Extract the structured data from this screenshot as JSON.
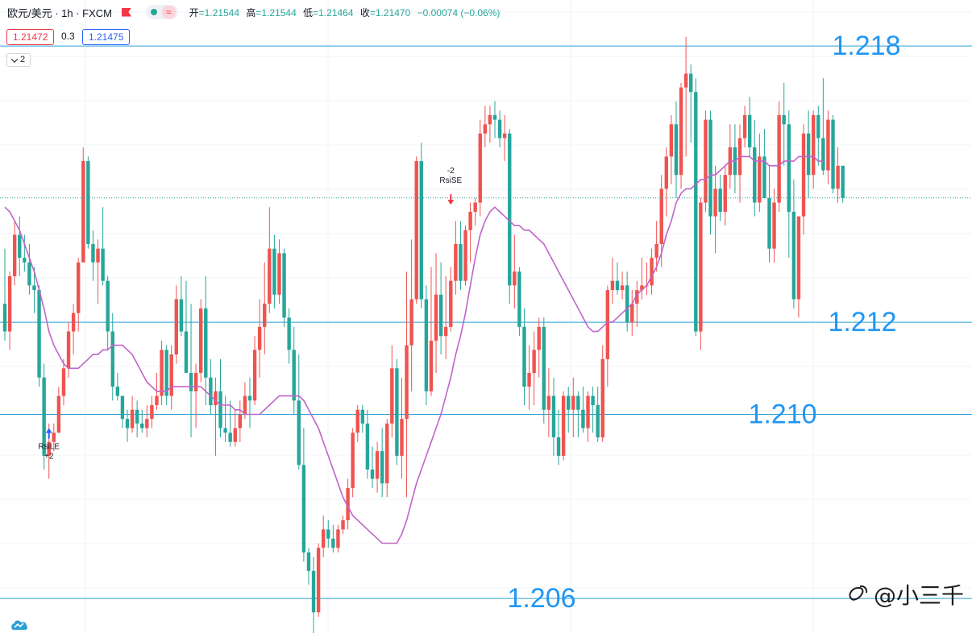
{
  "header": {
    "title": "欧元/美元 · 1h · FXCM",
    "ohlc": {
      "open_label": "开",
      "open": "=1.21544",
      "high_label": "高",
      "high": "=1.21544",
      "low_label": "低",
      "low": "=1.21464",
      "close_label": "收",
      "close": "=1.21470",
      "change": "−0.00074 (−0.06%)"
    },
    "wave_glyph": "≈"
  },
  "quotes": {
    "sell": "1.21472",
    "spread": "0.3",
    "buy": "1.21475"
  },
  "indicator_toggle": "2",
  "watermark": "@小三千",
  "colors": {
    "up": "#ef5350",
    "down": "#26a69a",
    "ma": "#c064c8",
    "level_line": "#2a9fd6",
    "level_label": "#2196f3",
    "grid": "#f0f3fa"
  },
  "chart_data": {
    "type": "candlestick",
    "symbol": "欧元/美元",
    "timeframe": "1h",
    "ylim": [
      1.2055,
      1.219
    ],
    "current_price": 1.2147,
    "levels": [
      {
        "label": "1.218",
        "value": 1.218
      },
      {
        "label": "1.212",
        "value": 1.212
      },
      {
        "label": "1.210",
        "value": 1.21
      },
      {
        "label": "1.206",
        "value": 1.206
      }
    ],
    "annotations": [
      {
        "label": "RsiLE",
        "sub": "+2",
        "index": 9,
        "price": 1.2097,
        "direction": "up"
      },
      {
        "label": "RsiSE",
        "sub": "-2",
        "index": 91,
        "price": 1.2148,
        "direction": "down"
      }
    ],
    "ohlc": [
      [
        1.2124,
        1.2136,
        1.2116,
        1.2118
      ],
      [
        1.2118,
        1.2131,
        1.2114,
        1.213
      ],
      [
        1.213,
        1.2142,
        1.2128,
        1.2139
      ],
      [
        1.2139,
        1.2143,
        1.213,
        1.2134
      ],
      [
        1.2134,
        1.2139,
        1.2131,
        1.2133
      ],
      [
        1.2133,
        1.2137,
        1.2126,
        1.2128
      ],
      [
        1.2128,
        1.2132,
        1.2122,
        1.2127
      ],
      [
        1.2127,
        1.2128,
        1.2106,
        1.2108
      ],
      [
        1.2108,
        1.2111,
        1.2088,
        1.2091
      ],
      [
        1.2091,
        1.2098,
        1.2086,
        1.2094
      ],
      [
        1.2094,
        1.2098,
        1.2092,
        1.2096
      ],
      [
        1.2096,
        1.2106,
        1.2096,
        1.2104
      ],
      [
        1.2104,
        1.2112,
        1.2102,
        1.211
      ],
      [
        1.211,
        1.212,
        1.2108,
        1.2118
      ],
      [
        1.2118,
        1.2124,
        1.2113,
        1.2122
      ],
      [
        1.2122,
        1.2134,
        1.2118,
        1.2133
      ],
      [
        1.2133,
        1.2158,
        1.2133,
        1.2155
      ],
      [
        1.2155,
        1.2156,
        1.2136,
        1.2137
      ],
      [
        1.2137,
        1.214,
        1.2129,
        1.2133
      ],
      [
        1.2133,
        1.2138,
        1.2124,
        1.2136
      ],
      [
        1.2136,
        1.2145,
        1.2128,
        1.2129
      ],
      [
        1.2129,
        1.213,
        1.2114,
        1.2118
      ],
      [
        1.2118,
        1.2122,
        1.2103,
        1.2106
      ],
      [
        1.2106,
        1.2109,
        1.2103,
        1.2104
      ],
      [
        1.2104,
        1.2104,
        1.2097,
        1.2099
      ],
      [
        1.2099,
        1.2101,
        1.2094,
        1.2097
      ],
      [
        1.2097,
        1.2104,
        1.2096,
        1.2101
      ],
      [
        1.2101,
        1.2103,
        1.2095,
        1.2098
      ],
      [
        1.2098,
        1.2101,
        1.2096,
        1.2097
      ],
      [
        1.2097,
        1.2102,
        1.2095,
        1.2099
      ],
      [
        1.2099,
        1.2104,
        1.2097,
        1.2102
      ],
      [
        1.2102,
        1.2109,
        1.2101,
        1.2104
      ],
      [
        1.2104,
        1.2116,
        1.2102,
        1.2114
      ],
      [
        1.2114,
        1.2115,
        1.2102,
        1.2104
      ],
      [
        1.2104,
        1.2115,
        1.2101,
        1.2113
      ],
      [
        1.2113,
        1.2128,
        1.2111,
        1.2125
      ],
      [
        1.2125,
        1.213,
        1.2117,
        1.2118
      ],
      [
        1.2118,
        1.2129,
        1.2109,
        1.2109
      ],
      [
        1.2109,
        1.2124,
        1.2095,
        1.2105
      ],
      [
        1.2105,
        1.2111,
        1.2097,
        1.2109
      ],
      [
        1.2109,
        1.2125,
        1.2107,
        1.2123
      ],
      [
        1.2123,
        1.213,
        1.2102,
        1.2108
      ],
      [
        1.2108,
        1.2112,
        1.21,
        1.2102
      ],
      [
        1.2102,
        1.2108,
        1.2091,
        1.2105
      ],
      [
        1.2105,
        1.2112,
        1.2095,
        1.2097
      ],
      [
        1.2097,
        1.2104,
        1.2094,
        1.2096
      ],
      [
        1.2096,
        1.2103,
        1.2093,
        1.2094
      ],
      [
        1.2094,
        1.2101,
        1.2093,
        1.2097
      ],
      [
        1.2097,
        1.2103,
        1.2094,
        1.21
      ],
      [
        1.21,
        1.2107,
        1.2099,
        1.2104
      ],
      [
        1.2104,
        1.2108,
        1.2097,
        1.2103
      ],
      [
        1.2103,
        1.2117,
        1.2102,
        1.2114
      ],
      [
        1.2114,
        1.2125,
        1.2108,
        1.2119
      ],
      [
        1.2119,
        1.2133,
        1.2113,
        1.2124
      ],
      [
        1.2124,
        1.2145,
        1.2122,
        1.2136
      ],
      [
        1.2136,
        1.2139,
        1.2123,
        1.2126
      ],
      [
        1.2126,
        1.2138,
        1.2124,
        1.2135
      ],
      [
        1.2135,
        1.2136,
        1.2119,
        1.2121
      ],
      [
        1.2121,
        1.2123,
        1.2111,
        1.2114
      ],
      [
        1.2114,
        1.2119,
        1.21,
        1.2103
      ],
      [
        1.2103,
        1.2113,
        1.2088,
        1.2089
      ],
      [
        1.2089,
        1.2097,
        1.2068,
        1.207
      ],
      [
        1.207,
        1.2071,
        1.2063,
        1.2066
      ],
      [
        1.2066,
        1.2069,
        1.2051,
        1.2057
      ],
      [
        1.2057,
        1.2072,
        1.2056,
        1.2071
      ],
      [
        1.2071,
        1.2078,
        1.2069,
        1.2075
      ],
      [
        1.2075,
        1.2077,
        1.2071,
        1.2073
      ],
      [
        1.2073,
        1.2076,
        1.207,
        1.2071
      ],
      [
        1.2071,
        1.2076,
        1.207,
        1.2075
      ],
      [
        1.2075,
        1.2078,
        1.2074,
        1.2077
      ],
      [
        1.2077,
        1.2086,
        1.2075,
        1.2084
      ],
      [
        1.2084,
        1.2097,
        1.2082,
        1.2096
      ],
      [
        1.2096,
        1.2102,
        1.2094,
        1.2101
      ],
      [
        1.2101,
        1.2102,
        1.2096,
        1.2098
      ],
      [
        1.2098,
        1.2101,
        1.2086,
        1.2088
      ],
      [
        1.2088,
        1.2093,
        1.2084,
        1.2086
      ],
      [
        1.2086,
        1.2094,
        1.2083,
        1.2092
      ],
      [
        1.2092,
        1.2097,
        1.2082,
        1.2085
      ],
      [
        1.2085,
        1.2099,
        1.2082,
        1.2098
      ],
      [
        1.2098,
        1.2115,
        1.2095,
        1.211
      ],
      [
        1.211,
        1.2112,
        1.2089,
        1.2091
      ],
      [
        1.2091,
        1.2108,
        1.2086,
        1.2099
      ],
      [
        1.2099,
        1.2131,
        1.2082,
        1.2115
      ],
      [
        1.2115,
        1.2138,
        1.2105,
        1.2125
      ],
      [
        1.2125,
        1.2156,
        1.2124,
        1.2155
      ],
      [
        1.2155,
        1.2159,
        1.2123,
        1.2125
      ],
      [
        1.2125,
        1.2128,
        1.2102,
        1.2105
      ],
      [
        1.2105,
        1.2132,
        1.2104,
        1.2116
      ],
      [
        1.2116,
        1.2135,
        1.2109,
        1.2126
      ],
      [
        1.2126,
        1.2133,
        1.2113,
        1.2117
      ],
      [
        1.2117,
        1.213,
        1.2112,
        1.2119
      ],
      [
        1.2119,
        1.2132,
        1.2118,
        1.2129
      ],
      [
        1.2129,
        1.2142,
        1.2126,
        1.2137
      ],
      [
        1.2137,
        1.2142,
        1.2127,
        1.2129
      ],
      [
        1.2129,
        1.2141,
        1.2128,
        1.214
      ],
      [
        1.214,
        1.2146,
        1.2133,
        1.2144
      ],
      [
        1.2144,
        1.2147,
        1.2141,
        1.2146
      ],
      [
        1.2146,
        1.2164,
        1.2143,
        1.2161
      ],
      [
        1.2161,
        1.2167,
        1.2158,
        1.2163
      ],
      [
        1.2163,
        1.2167,
        1.2159,
        1.2165
      ],
      [
        1.2165,
        1.2168,
        1.216,
        1.2164
      ],
      [
        1.2164,
        1.2166,
        1.2158,
        1.216
      ],
      [
        1.216,
        1.2165,
        1.2155,
        1.2161
      ],
      [
        1.2161,
        1.2162,
        1.2124,
        1.2128
      ],
      [
        1.2128,
        1.2139,
        1.2123,
        1.2131
      ],
      [
        1.2131,
        1.2132,
        1.2117,
        1.2119
      ],
      [
        1.2119,
        1.2123,
        1.2102,
        1.2106
      ],
      [
        1.2106,
        1.2115,
        1.2101,
        1.2109
      ],
      [
        1.2109,
        1.2118,
        1.2102,
        1.2114
      ],
      [
        1.2114,
        1.2121,
        1.2108,
        1.2119
      ],
      [
        1.2119,
        1.2121,
        1.2098,
        1.2101
      ],
      [
        1.2101,
        1.211,
        1.2095,
        1.2104
      ],
      [
        1.2104,
        1.2108,
        1.2091,
        1.2095
      ],
      [
        1.2095,
        1.2101,
        1.2089,
        1.2091
      ],
      [
        1.2091,
        1.2105,
        1.209,
        1.2104
      ],
      [
        1.2104,
        1.2106,
        1.2096,
        1.2101
      ],
      [
        1.2101,
        1.2108,
        1.2095,
        1.2104
      ],
      [
        1.2104,
        1.2105,
        1.2095,
        1.2101
      ],
      [
        1.2101,
        1.2106,
        1.2096,
        1.2097
      ],
      [
        1.2097,
        1.2105,
        1.2094,
        1.2104
      ],
      [
        1.2104,
        1.2106,
        1.2096,
        1.2102
      ],
      [
        1.2102,
        1.2106,
        1.2094,
        1.2095
      ],
      [
        1.2095,
        1.2115,
        1.2094,
        1.2112
      ],
      [
        1.2112,
        1.2128,
        1.2106,
        1.2127
      ],
      [
        1.2127,
        1.2134,
        1.2124,
        1.2129
      ],
      [
        1.2129,
        1.2133,
        1.2126,
        1.2127
      ],
      [
        1.2127,
        1.2131,
        1.2125,
        1.2128
      ],
      [
        1.2128,
        1.2131,
        1.2118,
        1.212
      ],
      [
        1.212,
        1.2127,
        1.2117,
        1.2124
      ],
      [
        1.2124,
        1.2129,
        1.2119,
        1.2127
      ],
      [
        1.2127,
        1.2134,
        1.2125,
        1.2128
      ],
      [
        1.2128,
        1.2133,
        1.2126,
        1.2128
      ],
      [
        1.2128,
        1.2136,
        1.2126,
        1.2134
      ],
      [
        1.2134,
        1.2142,
        1.2131,
        1.2137
      ],
      [
        1.2137,
        1.2152,
        1.2132,
        1.2149
      ],
      [
        1.2149,
        1.2158,
        1.2143,
        1.2156
      ],
      [
        1.2156,
        1.2165,
        1.215,
        1.2163
      ],
      [
        1.2163,
        1.2168,
        1.2147,
        1.2152
      ],
      [
        1.2152,
        1.2172,
        1.2149,
        1.2171
      ],
      [
        1.2171,
        1.2182,
        1.2156,
        1.2174
      ],
      [
        1.2174,
        1.2176,
        1.2159,
        1.217
      ],
      [
        1.217,
        1.2173,
        1.2117,
        1.2118
      ],
      [
        1.2118,
        1.2147,
        1.2114,
        1.2146
      ],
      [
        1.2146,
        1.2166,
        1.2144,
        1.2164
      ],
      [
        1.2164,
        1.2166,
        1.2139,
        1.2143
      ],
      [
        1.2143,
        1.2154,
        1.2135,
        1.2149
      ],
      [
        1.2149,
        1.2152,
        1.2142,
        1.2144
      ],
      [
        1.2144,
        1.2154,
        1.2141,
        1.2152
      ],
      [
        1.2152,
        1.2163,
        1.2149,
        1.2158
      ],
      [
        1.2158,
        1.2163,
        1.2148,
        1.2152
      ],
      [
        1.2152,
        1.2163,
        1.2146,
        1.216
      ],
      [
        1.216,
        1.2167,
        1.2158,
        1.2165
      ],
      [
        1.2165,
        1.2169,
        1.2156,
        1.2158
      ],
      [
        1.2158,
        1.2164,
        1.2143,
        1.2146
      ],
      [
        1.2146,
        1.2161,
        1.2144,
        1.2156
      ],
      [
        1.2156,
        1.2162,
        1.2147,
        1.2147
      ],
      [
        1.2147,
        1.2154,
        1.2133,
        1.2136
      ],
      [
        1.2136,
        1.2149,
        1.2133,
        1.2146
      ],
      [
        1.2146,
        1.2168,
        1.2144,
        1.2165
      ],
      [
        1.2165,
        1.2172,
        1.2154,
        1.2163
      ],
      [
        1.2163,
        1.2166,
        1.2134,
        1.2144
      ],
      [
        1.2144,
        1.2151,
        1.2123,
        1.2125
      ],
      [
        1.2125,
        1.2143,
        1.2121,
        1.2143
      ],
      [
        1.2143,
        1.2163,
        1.2139,
        1.2161
      ],
      [
        1.2161,
        1.2166,
        1.2147,
        1.2152
      ],
      [
        1.2152,
        1.2166,
        1.2149,
        1.2165
      ],
      [
        1.2165,
        1.2167,
        1.2154,
        1.216
      ],
      [
        1.216,
        1.2173,
        1.2152,
        1.2153
      ],
      [
        1.2153,
        1.2166,
        1.215,
        1.2164
      ],
      [
        1.2164,
        1.2165,
        1.2148,
        1.2149
      ],
      [
        1.2149,
        1.2158,
        1.2146,
        1.2154
      ],
      [
        1.2154,
        1.2154,
        1.2146,
        1.2147
      ]
    ],
    "ma": [
      1.2145,
      1.2144,
      1.2142,
      1.214,
      1.2137,
      1.2134,
      1.2131,
      1.2127,
      1.2123,
      1.2118,
      1.2115,
      1.2113,
      1.2111,
      1.211,
      1.211,
      1.211,
      1.2111,
      1.2112,
      1.2113,
      1.2113,
      1.2114,
      1.2114,
      1.2115,
      1.2115,
      1.2115,
      1.2114,
      1.2113,
      1.2111,
      1.2109,
      1.2107,
      1.2106,
      1.2105,
      1.2105,
      1.2105,
      1.2106,
      1.2106,
      1.2106,
      1.2106,
      1.2106,
      1.2106,
      1.2106,
      1.2105,
      1.2104,
      1.2103,
      1.2102,
      1.2102,
      1.2102,
      1.2101,
      1.2101,
      1.21,
      1.21,
      1.21,
      1.21,
      1.2101,
      1.2102,
      1.2103,
      1.2104,
      1.2104,
      1.2104,
      1.2104,
      1.2104,
      1.2103,
      1.2101,
      1.2099,
      1.2097,
      1.2094,
      1.2091,
      1.2088,
      1.2085,
      1.2082,
      1.208,
      1.2078,
      1.2077,
      1.2076,
      1.2075,
      1.2074,
      1.2073,
      1.2072,
      1.2072,
      1.2072,
      1.2072,
      1.2074,
      1.2077,
      1.2081,
      1.2085,
      1.2088,
      1.2091,
      1.2094,
      1.2097,
      1.21,
      1.2104,
      1.2108,
      1.2113,
      1.2117,
      1.2122,
      1.2128,
      1.2134,
      1.2139,
      1.2142,
      1.2144,
      1.2145,
      1.2144,
      1.2143,
      1.2142,
      1.2141,
      1.2141,
      1.214,
      1.214,
      1.2139,
      1.2138,
      1.2137,
      1.2135,
      1.2133,
      1.2131,
      1.2129,
      1.2127,
      1.2125,
      1.2123,
      1.2121,
      1.2119,
      1.2118,
      1.2118,
      1.2119,
      1.212,
      1.212,
      1.2121,
      1.2122,
      1.2123,
      1.2124,
      1.2126,
      1.2127,
      1.2128,
      1.213,
      1.2132,
      1.2135,
      1.2139,
      1.2142,
      1.2146,
      1.2148,
      1.2149,
      1.2149,
      1.215,
      1.2151,
      1.2151,
      1.2152,
      1.2152,
      1.2153,
      1.2154,
      1.2155,
      1.2155,
      1.2156,
      1.2156,
      1.2156,
      1.2155,
      1.2155,
      1.2155,
      1.2154,
      1.2154,
      1.2154,
      1.2155,
      1.2155,
      1.2155,
      1.2156,
      1.2156,
      1.2156,
      1.2156,
      1.2155,
      1.2155
    ]
  }
}
